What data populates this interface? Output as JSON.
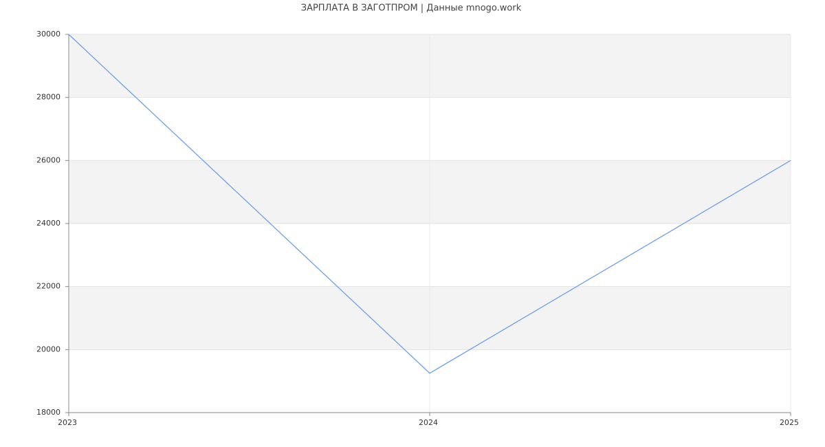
{
  "chart_data": {
    "type": "line",
    "title": "ЗАРПЛАТА В ЗАГОТПРОМ | Данные mnogo.work",
    "x": [
      2023,
      2024,
      2025
    ],
    "series": [
      {
        "name": "ЗАРПЛАТА",
        "color": "#6d9eeb",
        "values": [
          30000,
          19250,
          26000
        ]
      }
    ],
    "xlim": [
      2023,
      2025
    ],
    "xticks": [
      2023,
      2024,
      2025
    ],
    "ylim": [
      18000,
      30000
    ],
    "yticks": [
      18000,
      20000,
      22000,
      24000,
      26000,
      28000,
      30000
    ],
    "grid": true,
    "band_color": "#f3f3f3",
    "legend": false
  }
}
